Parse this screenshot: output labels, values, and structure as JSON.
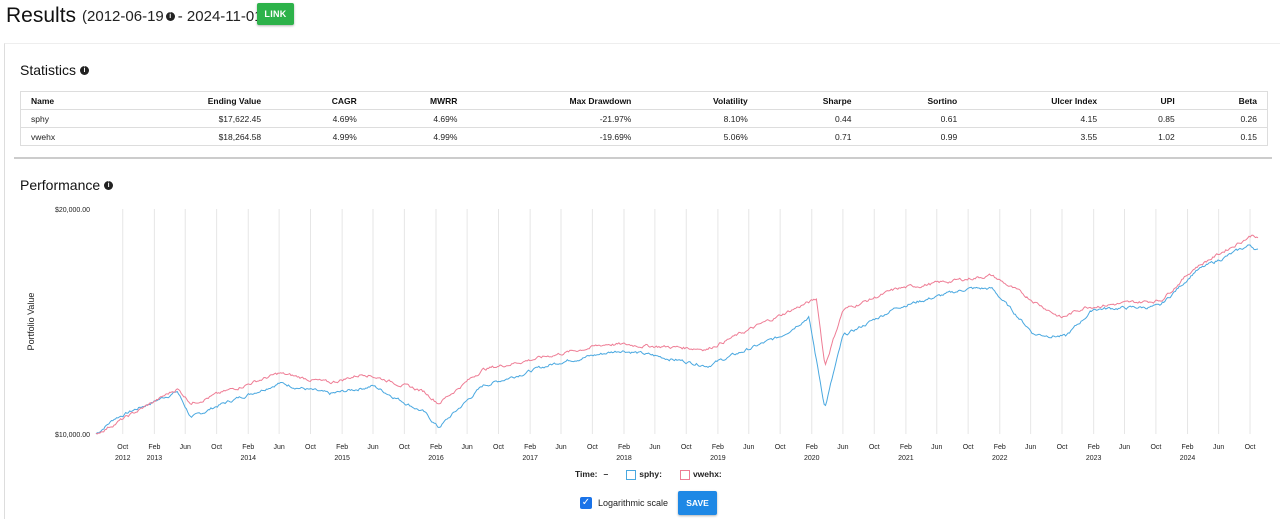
{
  "header": {
    "title": "Results",
    "range_start": "(2012-06-19",
    "range_end": "- 2024-11-01)",
    "link_label": "LINK"
  },
  "statistics": {
    "title": "Statistics",
    "columns": [
      "Name",
      "Ending Value",
      "CAGR",
      "MWRR",
      "Max Drawdown",
      "Volatility",
      "Sharpe",
      "Sortino",
      "Ulcer Index",
      "UPI",
      "Beta"
    ],
    "rows": [
      [
        "sphy",
        "$17,622.45",
        "4.69%",
        "4.69%",
        "-21.97%",
        "8.10%",
        "0.44",
        "0.61",
        "4.15",
        "0.85",
        "0.26"
      ],
      [
        "vwehx",
        "$18,264.58",
        "4.99%",
        "4.99%",
        "-19.69%",
        "5.06%",
        "0.71",
        "0.99",
        "3.55",
        "1.02",
        "0.15"
      ]
    ]
  },
  "performance": {
    "title": "Performance"
  },
  "chart_data": {
    "type": "line",
    "ylabel": "Portfolio Value",
    "yscale": "log",
    "ylim": [
      10000,
      20000
    ],
    "y_tick_labels": [
      "$20,000.00",
      "$10,000.00"
    ],
    "x_range": [
      "2012-06-19",
      "2024-11-01"
    ],
    "x_ticks": [
      {
        "date": "2012-10",
        "label": "Oct",
        "year": "2012"
      },
      {
        "date": "2013-02",
        "label": "Feb",
        "year": "2013"
      },
      {
        "date": "2013-06",
        "label": "Jun",
        "year": ""
      },
      {
        "date": "2013-10",
        "label": "Oct",
        "year": ""
      },
      {
        "date": "2014-02",
        "label": "Feb",
        "year": "2014"
      },
      {
        "date": "2014-06",
        "label": "Jun",
        "year": ""
      },
      {
        "date": "2014-10",
        "label": "Oct",
        "year": ""
      },
      {
        "date": "2015-02",
        "label": "Feb",
        "year": "2015"
      },
      {
        "date": "2015-06",
        "label": "Jun",
        "year": ""
      },
      {
        "date": "2015-10",
        "label": "Oct",
        "year": ""
      },
      {
        "date": "2016-02",
        "label": "Feb",
        "year": "2016"
      },
      {
        "date": "2016-06",
        "label": "Jun",
        "year": ""
      },
      {
        "date": "2016-10",
        "label": "Oct",
        "year": ""
      },
      {
        "date": "2017-02",
        "label": "Feb",
        "year": "2017"
      },
      {
        "date": "2017-06",
        "label": "Jun",
        "year": ""
      },
      {
        "date": "2017-10",
        "label": "Oct",
        "year": ""
      },
      {
        "date": "2018-02",
        "label": "Feb",
        "year": "2018"
      },
      {
        "date": "2018-06",
        "label": "Jun",
        "year": ""
      },
      {
        "date": "2018-10",
        "label": "Oct",
        "year": ""
      },
      {
        "date": "2019-02",
        "label": "Feb",
        "year": "2019"
      },
      {
        "date": "2019-06",
        "label": "Jun",
        "year": ""
      },
      {
        "date": "2019-10",
        "label": "Oct",
        "year": ""
      },
      {
        "date": "2020-02",
        "label": "Feb",
        "year": "2020"
      },
      {
        "date": "2020-06",
        "label": "Jun",
        "year": ""
      },
      {
        "date": "2020-10",
        "label": "Oct",
        "year": ""
      },
      {
        "date": "2021-02",
        "label": "Feb",
        "year": "2021"
      },
      {
        "date": "2021-06",
        "label": "Jun",
        "year": ""
      },
      {
        "date": "2021-10",
        "label": "Oct",
        "year": ""
      },
      {
        "date": "2022-02",
        "label": "Feb",
        "year": "2022"
      },
      {
        "date": "2022-06",
        "label": "Jun",
        "year": ""
      },
      {
        "date": "2022-10",
        "label": "Oct",
        "year": ""
      },
      {
        "date": "2023-02",
        "label": "Feb",
        "year": "2023"
      },
      {
        "date": "2023-06",
        "label": "Jun",
        "year": ""
      },
      {
        "date": "2023-10",
        "label": "Oct",
        "year": ""
      },
      {
        "date": "2024-02",
        "label": "Feb",
        "year": "2024"
      },
      {
        "date": "2024-06",
        "label": "Jun",
        "year": ""
      },
      {
        "date": "2024-10",
        "label": "Oct",
        "year": ""
      }
    ],
    "series": [
      {
        "name": "sphy",
        "color": "#4aa8e0",
        "points": [
          [
            "2012-06-19",
            10000
          ],
          [
            "2012-09-01",
            10500
          ],
          [
            "2013-05-01",
            11400
          ],
          [
            "2013-06-25",
            10500
          ],
          [
            "2013-10-01",
            10900
          ],
          [
            "2014-06-01",
            11700
          ],
          [
            "2014-12-15",
            11300
          ],
          [
            "2015-06-01",
            11600
          ],
          [
            "2015-12-15",
            10700
          ],
          [
            "2016-02-11",
            10200
          ],
          [
            "2016-08-01",
            11600
          ],
          [
            "2017-06-01",
            12500
          ],
          [
            "2018-01-25",
            12950
          ],
          [
            "2018-12-24",
            12350
          ],
          [
            "2019-10-01",
            13500
          ],
          [
            "2020-01-20",
            14350
          ],
          [
            "2020-03-23",
            10850
          ],
          [
            "2020-06-01",
            13500
          ],
          [
            "2021-01-01",
            14800
          ],
          [
            "2021-10-01",
            15650
          ],
          [
            "2022-01-01",
            15650
          ],
          [
            "2022-06-15",
            13600
          ],
          [
            "2022-10-15",
            13500
          ],
          [
            "2023-02-01",
            14700
          ],
          [
            "2023-10-15",
            14800
          ],
          [
            "2024-03-01",
            16500
          ],
          [
            "2024-10-01",
            17900
          ],
          [
            "2024-11-01",
            17622
          ]
        ]
      },
      {
        "name": "vwehx",
        "color": "#ee7d95",
        "points": [
          [
            "2012-06-19",
            10000
          ],
          [
            "2012-12-01",
            10750
          ],
          [
            "2013-05-01",
            11500
          ],
          [
            "2013-06-25",
            11000
          ],
          [
            "2014-06-01",
            12050
          ],
          [
            "2014-12-15",
            11700
          ],
          [
            "2015-05-01",
            12050
          ],
          [
            "2015-12-15",
            11400
          ],
          [
            "2016-02-11",
            11000
          ],
          [
            "2016-08-01",
            12200
          ],
          [
            "2017-12-01",
            13200
          ],
          [
            "2018-12-24",
            13000
          ],
          [
            "2019-12-31",
            14900
          ],
          [
            "2020-02-20",
            15150
          ],
          [
            "2020-03-23",
            12350
          ],
          [
            "2020-06-01",
            14650
          ],
          [
            "2021-01-01",
            15650
          ],
          [
            "2021-12-31",
            16300
          ],
          [
            "2022-09-30",
            14300
          ],
          [
            "2022-12-31",
            14800
          ],
          [
            "2023-10-20",
            15100
          ],
          [
            "2024-03-01",
            16700
          ],
          [
            "2024-10-15",
            18500
          ],
          [
            "2024-11-01",
            18264
          ]
        ]
      }
    ]
  },
  "legend": {
    "time_label": "Time:",
    "time_value": "–",
    "items": [
      {
        "name": "sphy:",
        "color": "#4aa8e0"
      },
      {
        "name": "vwehx:",
        "color": "#ee7d95"
      }
    ]
  },
  "controls": {
    "log_label": "Logarithmic scale",
    "log_checked": true,
    "save_label": "SAVE"
  }
}
